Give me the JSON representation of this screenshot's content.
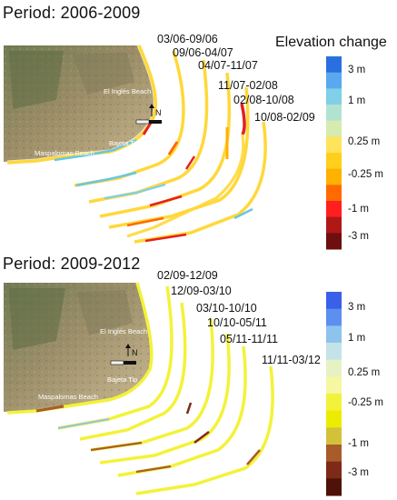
{
  "panels": [
    {
      "title": "Period: 2006-2009",
      "legend_title": "Elevation change",
      "map_labels": {
        "beach_north": "El Inglés Beach",
        "tip": "Bajeta Tip",
        "beach_south": "Maspalomas Beach",
        "north": "N"
      },
      "intervals": [
        "03/06-09/06",
        "09/06-04/07",
        "04/07-11/07",
        "11/07-02/08",
        "02/08-10/08",
        "10/08-02/09"
      ],
      "colorbar": {
        "labels": [
          "3 m",
          "1 m",
          "0.25 m",
          "-0.25 m",
          "-1 m",
          "-3 m"
        ],
        "colors": [
          "#2a6fe0",
          "#5aa8ee",
          "#7fd0e8",
          "#b2e3d0",
          "#d6ebb0",
          "#ffe35a",
          "#ffcf1c",
          "#ffb000",
          "#ff6a00",
          "#ff1f1f",
          "#b01818",
          "#6e0e0e"
        ]
      }
    },
    {
      "title": "Period: 2009-2012",
      "map_labels": {
        "beach_north": "El Inglés Beach",
        "tip": "Bajeta Tip",
        "beach_south": "Maspalomas Beach",
        "north": "N"
      },
      "intervals": [
        "02/09-12/09",
        "12/09-03/10",
        "03/10-10/10",
        "10/10-05/11",
        "05/11-11/11",
        "11/11-03/12"
      ],
      "colorbar": {
        "labels": [
          "3 m",
          "1 m",
          "0.25 m",
          "-0.25 m",
          "-1 m",
          "-3 m"
        ],
        "colors": [
          "#3a5fe8",
          "#5c8fee",
          "#8ec3ee",
          "#c4e3e8",
          "#e6f2c4",
          "#f6f7a0",
          "#f3f23a",
          "#ecec00",
          "#d2c23a",
          "#a85c2a",
          "#7e2a18",
          "#4e1208"
        ]
      }
    }
  ],
  "icons": {
    "north_arrow": "north-arrow-icon",
    "scale_bar": "scale-bar-icon"
  }
}
